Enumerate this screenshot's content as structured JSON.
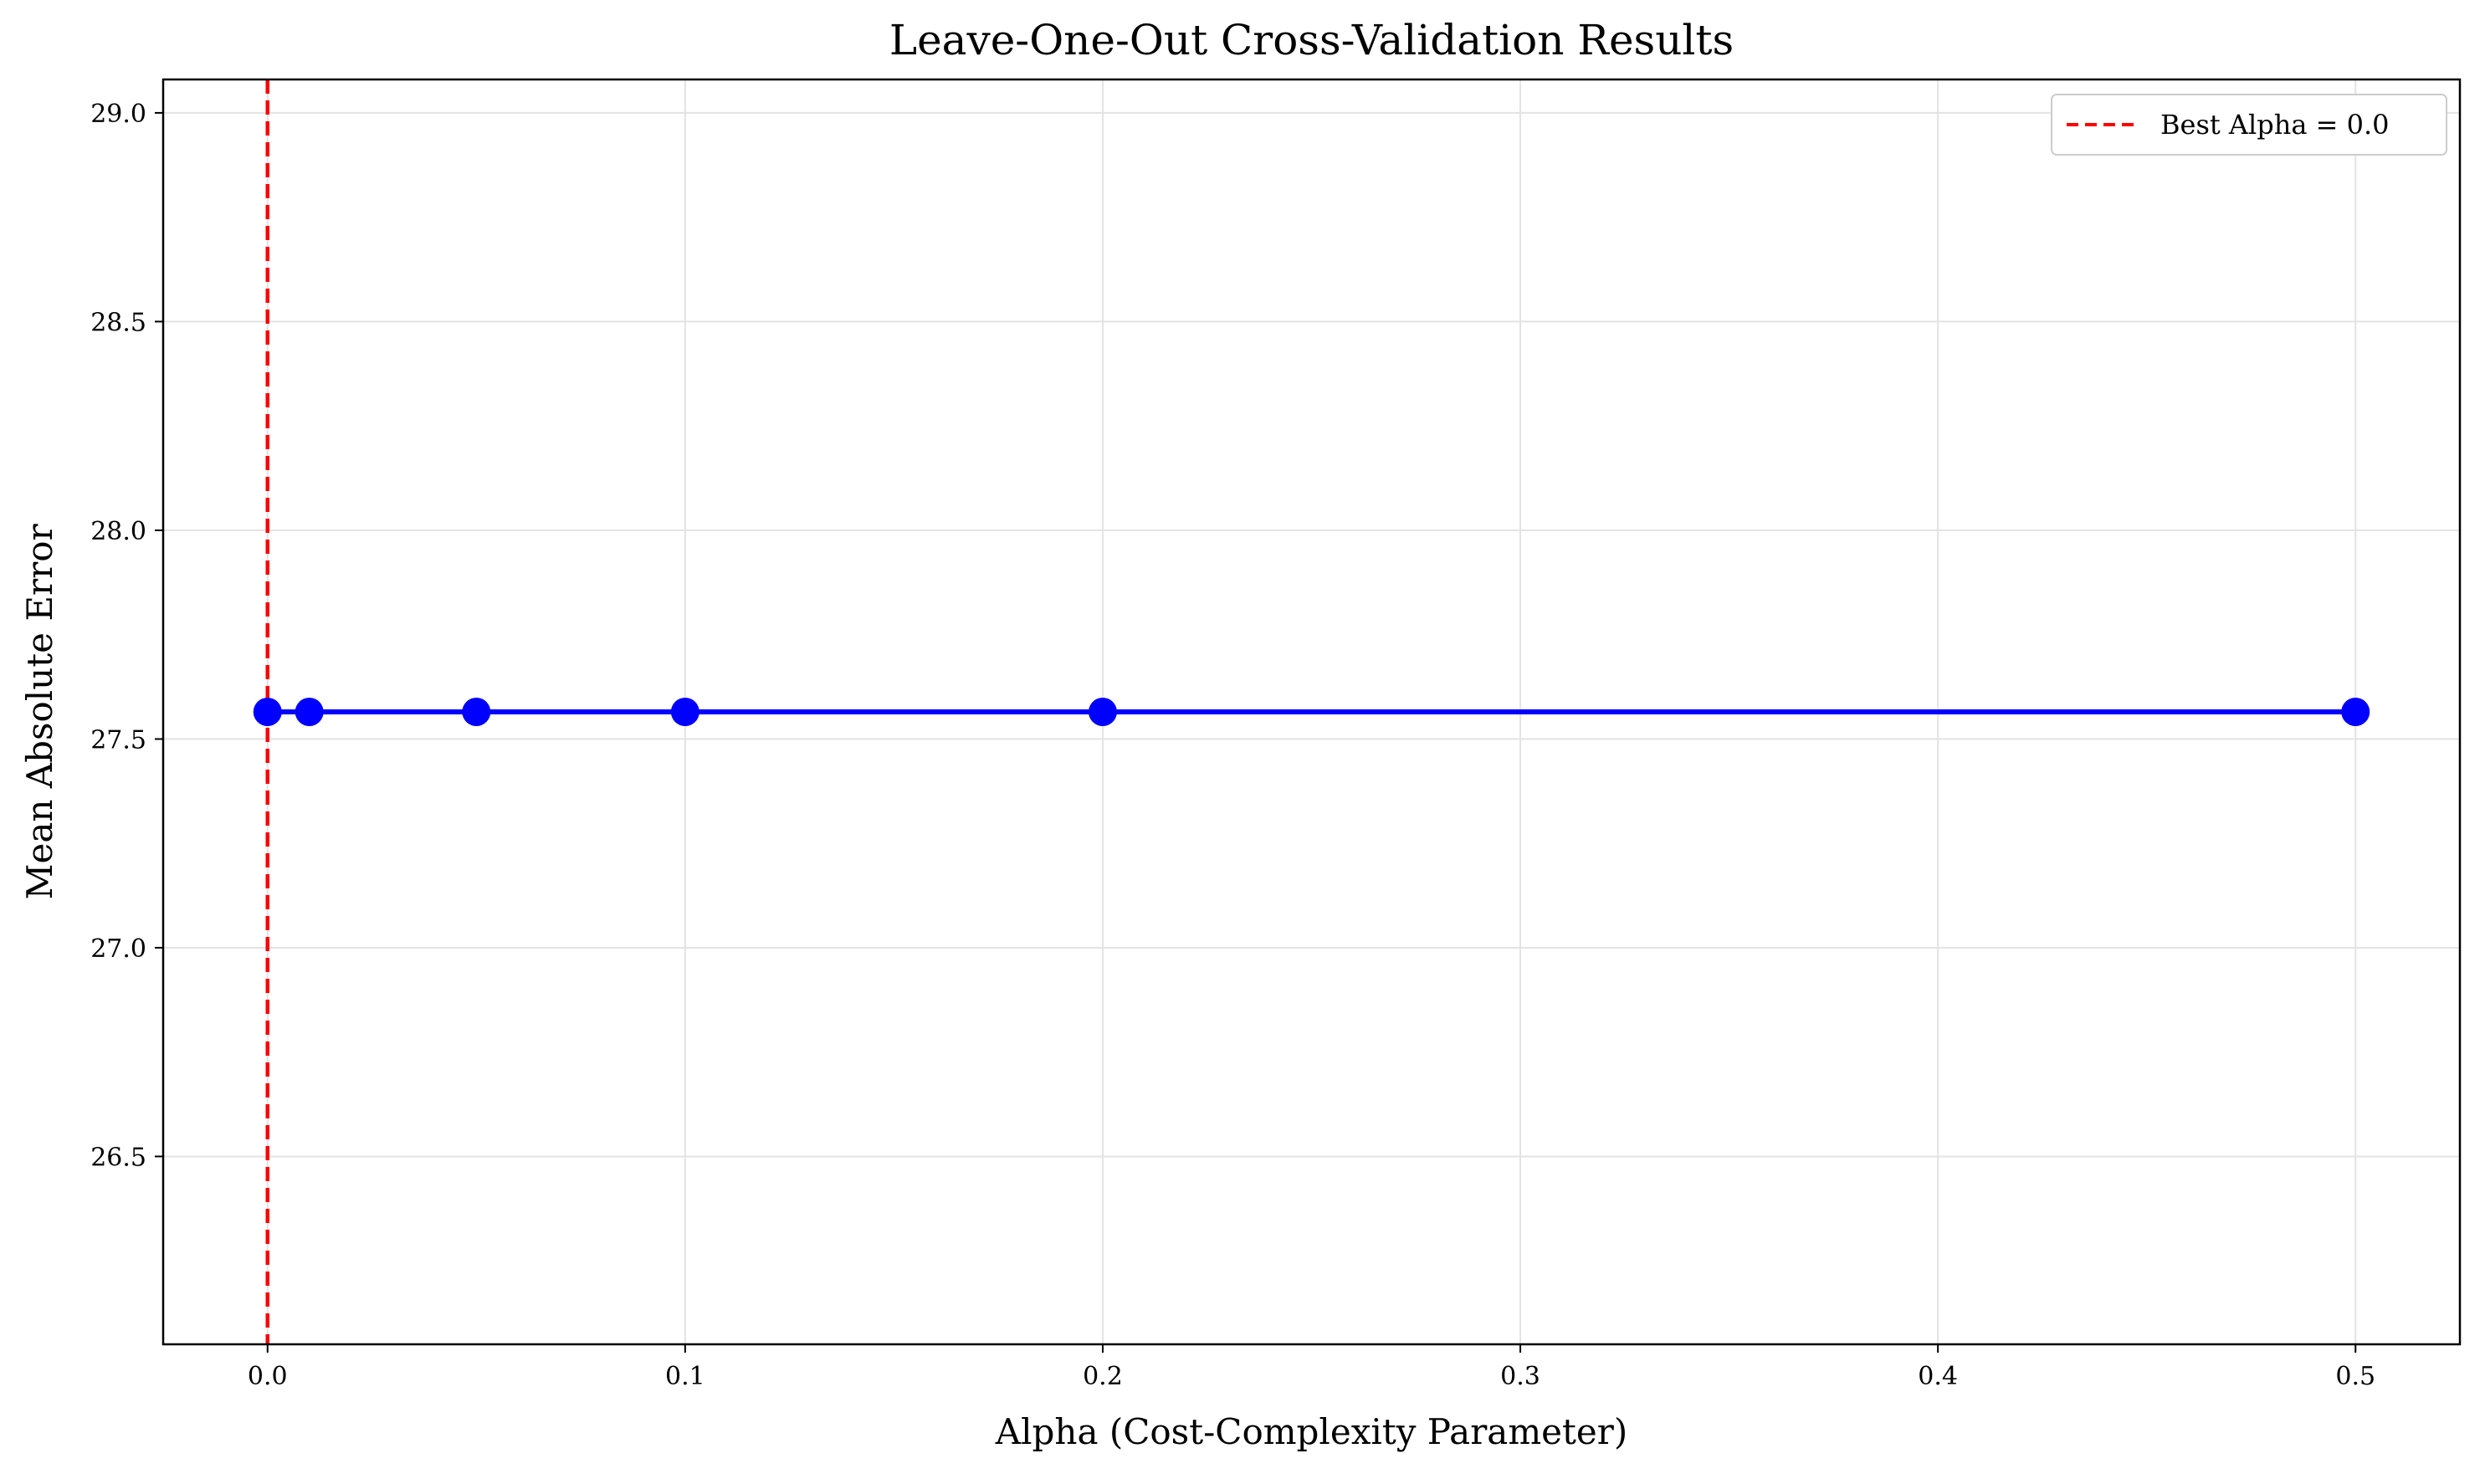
{
  "chart_data": {
    "type": "line",
    "title": "Leave-One-Out Cross-Validation Results",
    "xlabel": "Alpha (Cost-Complexity Parameter)",
    "ylabel": "Mean Absolute Error",
    "xlim": [
      -0.025,
      0.525
    ],
    "ylim": [
      26.05,
      29.08
    ],
    "x_ticks": [
      0.0,
      0.1,
      0.2,
      0.3,
      0.4,
      0.5
    ],
    "x_tick_labels": [
      "0.0",
      "0.1",
      "0.2",
      "0.3",
      "0.4",
      "0.5"
    ],
    "y_ticks": [
      26.5,
      27.0,
      27.5,
      28.0,
      28.5,
      29.0
    ],
    "y_tick_labels": [
      "26.5",
      "27.0",
      "27.5",
      "28.0",
      "28.5",
      "29.0"
    ],
    "grid": true,
    "legend_position": "top-right",
    "series": [
      {
        "x": [
          0.0,
          0.01,
          0.05,
          0.1,
          0.2,
          0.5
        ],
        "y": [
          27.565,
          27.565,
          27.565,
          27.565,
          27.565,
          27.565
        ],
        "color": "#0000ff",
        "style": "solid",
        "marker": "circle"
      }
    ],
    "reference_lines": [
      {
        "orientation": "vertical",
        "x": 0.0,
        "label": "Best Alpha = 0.0",
        "color": "#ff0000",
        "style": "dashed"
      }
    ]
  }
}
